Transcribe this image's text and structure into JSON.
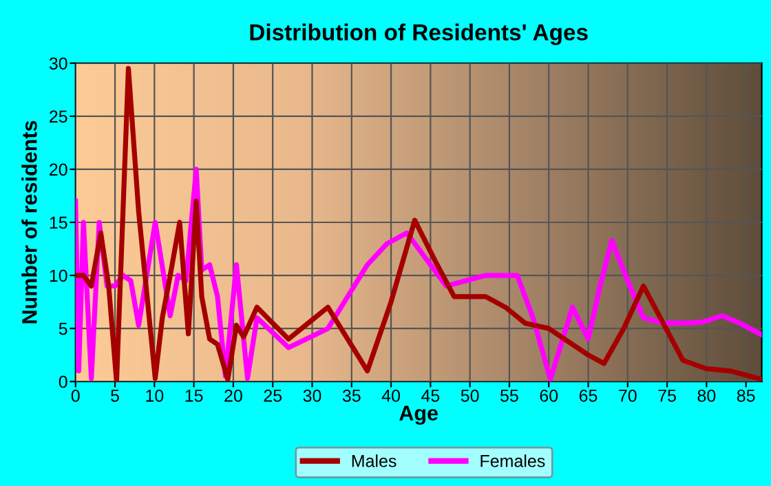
{
  "chart_data": {
    "type": "line",
    "title": "Distribution of Residents' Ages",
    "xlabel": "Age",
    "ylabel": "Number of residents",
    "xlim": [
      0,
      87
    ],
    "xticks": [
      0,
      5,
      10,
      15,
      20,
      25,
      30,
      35,
      40,
      45,
      50,
      55,
      60,
      65,
      70,
      75,
      80,
      85
    ],
    "ylim": [
      0,
      30
    ],
    "yticks": [
      0,
      5,
      10,
      15,
      20,
      25,
      30
    ],
    "grid": true,
    "legend": "bottom",
    "marker": "none",
    "line_style": "solid",
    "series": [
      {
        "name": "Males",
        "color": "#a50000",
        "x": [
          0,
          1,
          2,
          3.2,
          4.2,
          5.2,
          6.7,
          8,
          10.1,
          11,
          12,
          13.2,
          14.3,
          15.3,
          16,
          17,
          18,
          19.3,
          20.4,
          21.3,
          23,
          25,
          27,
          29.5,
          32,
          34.5,
          37,
          40,
          43,
          45.5,
          48,
          52,
          54.5,
          57,
          60,
          65,
          67,
          69.5,
          72,
          74.5,
          77,
          80,
          83,
          87
        ],
        "values": [
          10,
          10,
          9,
          14,
          9,
          0,
          29.5,
          16,
          0.3,
          6,
          10,
          15,
          4.5,
          17,
          8,
          4,
          3.5,
          0.2,
          5.3,
          4.2,
          7,
          5.5,
          4,
          5.5,
          7,
          4,
          1,
          7.5,
          15.2,
          11.5,
          8,
          8,
          7,
          5.5,
          5,
          2.5,
          1.7,
          5,
          9,
          5.5,
          2,
          1.2,
          1,
          0.2
        ]
      },
      {
        "name": "Females",
        "color": "#ff00ff",
        "x": [
          0,
          0.4,
          1,
          2,
          3,
          4,
          5,
          6,
          7,
          8,
          10.1,
          12,
          13,
          14,
          15.3,
          16,
          17,
          18,
          19,
          20.4,
          21.8,
          23,
          27,
          32,
          34.5,
          37,
          39.5,
          42,
          44.5,
          47,
          49.5,
          52,
          56,
          58,
          60.2,
          63,
          65,
          66.5,
          68,
          70,
          72,
          74.5,
          77,
          79.5,
          82,
          84.5,
          87
        ],
        "values": [
          17,
          1,
          15,
          0.3,
          15,
          9,
          9,
          10,
          9.5,
          5.3,
          15,
          6.2,
          10,
          9.5,
          20,
          10.5,
          11,
          8,
          0.5,
          11,
          0.3,
          6,
          3.2,
          5,
          8,
          11,
          13,
          14,
          11.5,
          9,
          9.5,
          10,
          10,
          6,
          0.2,
          7,
          4,
          9,
          13.3,
          9.5,
          6,
          5.5,
          5.5,
          5.6,
          6.2,
          5.4,
          4.4
        ]
      }
    ]
  }
}
